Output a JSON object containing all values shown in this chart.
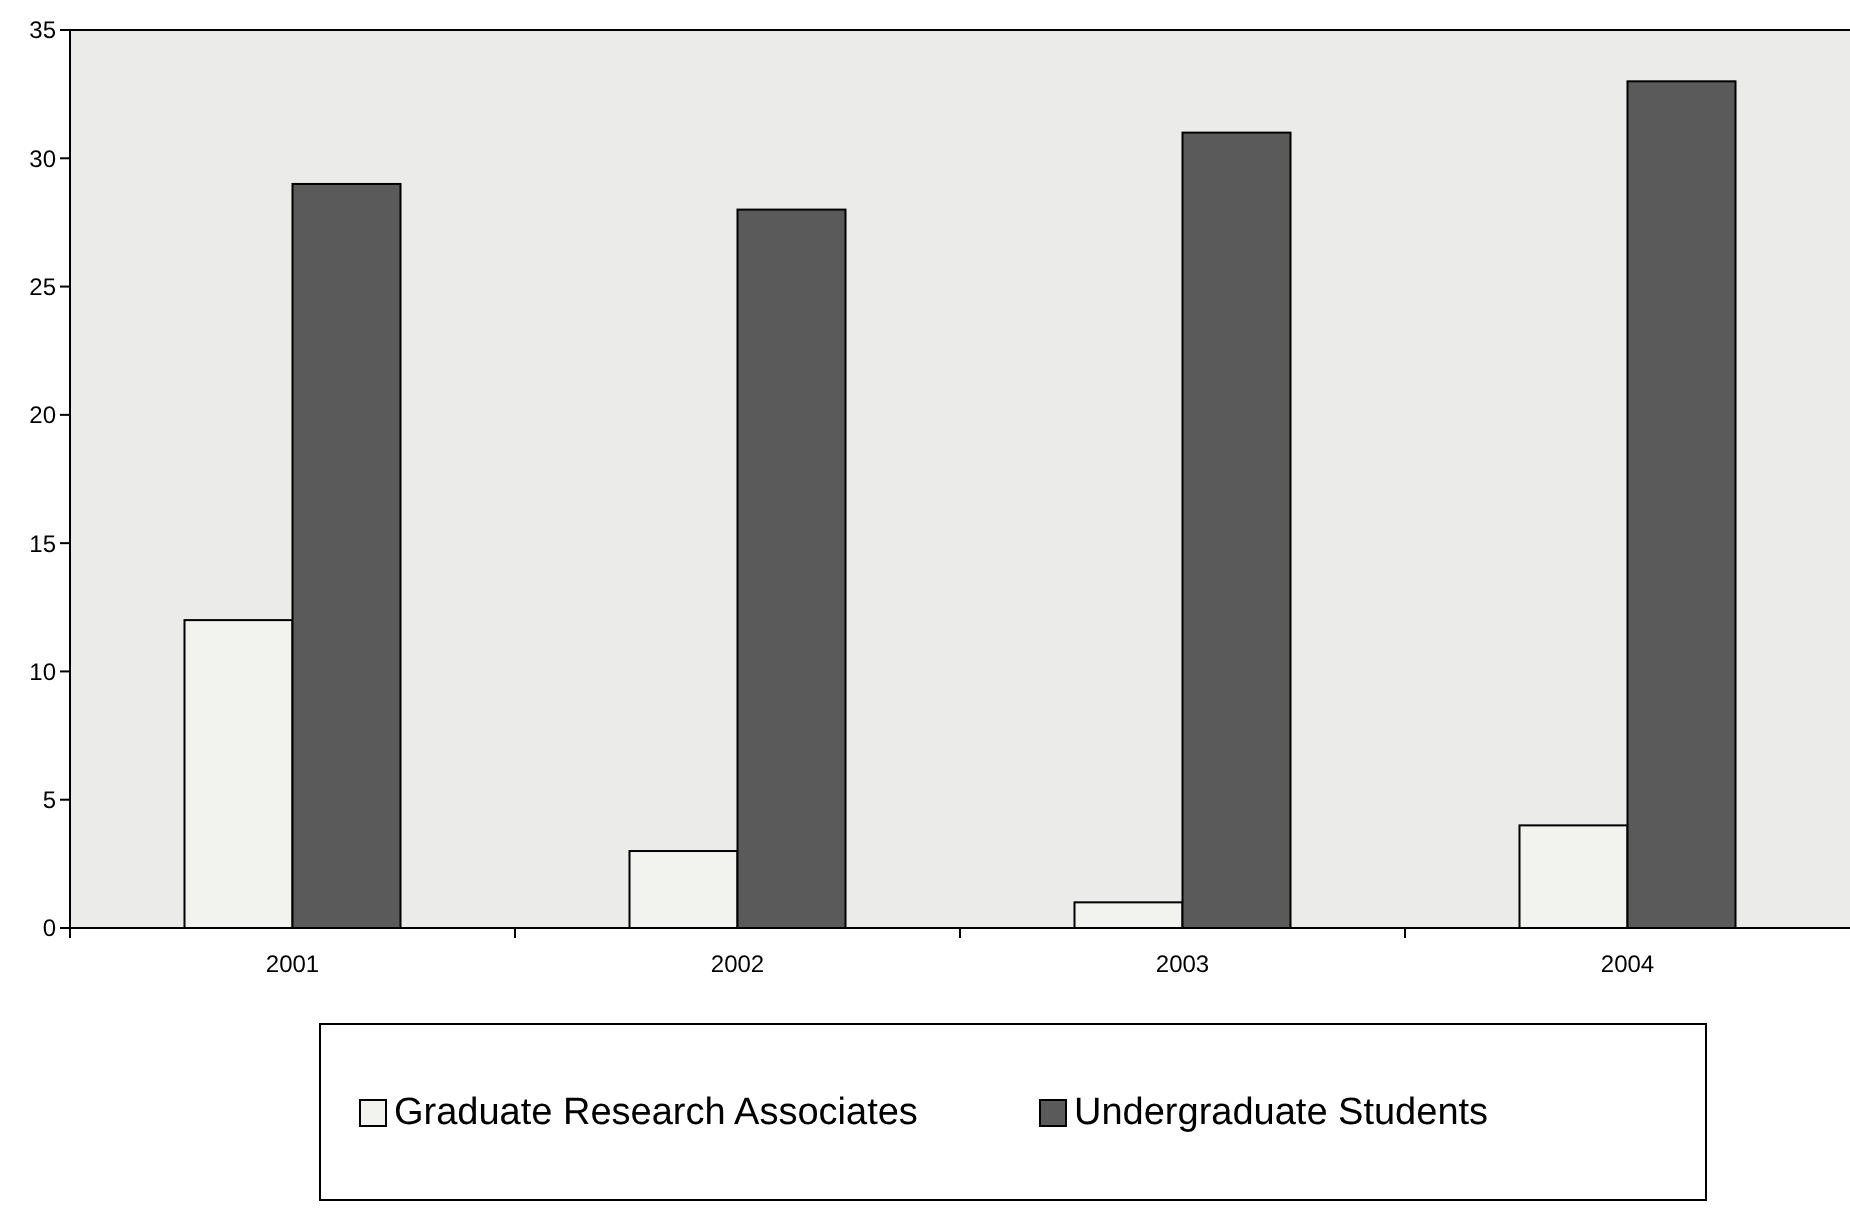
{
  "chart_data": {
    "type": "bar",
    "categories": [
      "2001",
      "2002",
      "2003",
      "2004"
    ],
    "series": [
      {
        "name": "Graduate Research Associates",
        "color": "#f2f2ef",
        "values": [
          12,
          3,
          1,
          4
        ]
      },
      {
        "name": "Undergraduate Students",
        "color": "#5a5a5a",
        "values": [
          29,
          28,
          31,
          33
        ]
      }
    ],
    "ylim": [
      0,
      35
    ],
    "yticks": [
      0,
      5,
      10,
      15,
      20,
      25,
      30,
      35
    ],
    "grid": false,
    "legend": "bottom"
  }
}
